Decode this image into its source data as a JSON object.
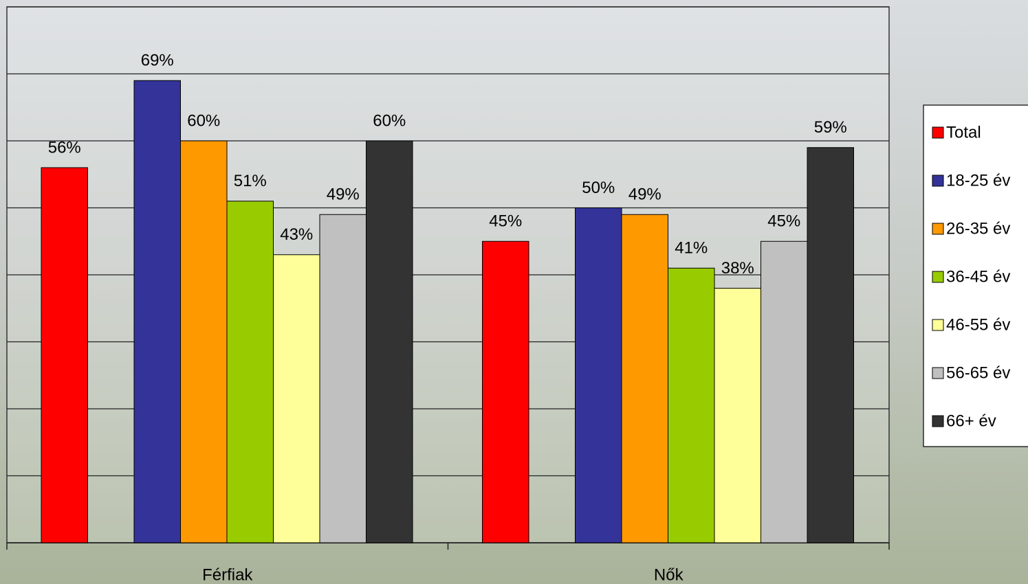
{
  "chart_data": {
    "type": "bar",
    "categories": [
      "Férfiak",
      "Nők"
    ],
    "series": [
      {
        "name": "Total",
        "color": "#FF0000",
        "values": [
          56,
          45
        ],
        "value_labels": [
          "56%",
          "45%"
        ]
      },
      {
        "name": "18-25 év",
        "color": "#333399",
        "values": [
          69,
          50
        ],
        "value_labels": [
          "69%",
          "50%"
        ]
      },
      {
        "name": "26-35 év",
        "color": "#FF9900",
        "values": [
          60,
          49
        ],
        "value_labels": [
          "60%",
          "49%"
        ]
      },
      {
        "name": "36-45 év",
        "color": "#99CC00",
        "values": [
          51,
          41
        ],
        "value_labels": [
          "51%",
          "41%"
        ]
      },
      {
        "name": "46-55 év",
        "color": "#FFFF99",
        "values": [
          43,
          38
        ],
        "value_labels": [
          "43%",
          "38%"
        ]
      },
      {
        "name": "56-65 év",
        "color": "#C0C0C0",
        "values": [
          49,
          45
        ],
        "value_labels": [
          "49%",
          "45%"
        ]
      },
      {
        "name": "66+ év",
        "color": "#333333",
        "values": [
          60,
          59
        ],
        "value_labels": [
          "60%",
          "59%"
        ]
      }
    ],
    "ylim": [
      0,
      80
    ],
    "yticks": [
      0,
      10,
      20,
      30,
      40,
      50,
      60,
      70,
      80
    ],
    "grid": true,
    "legend": "right"
  }
}
